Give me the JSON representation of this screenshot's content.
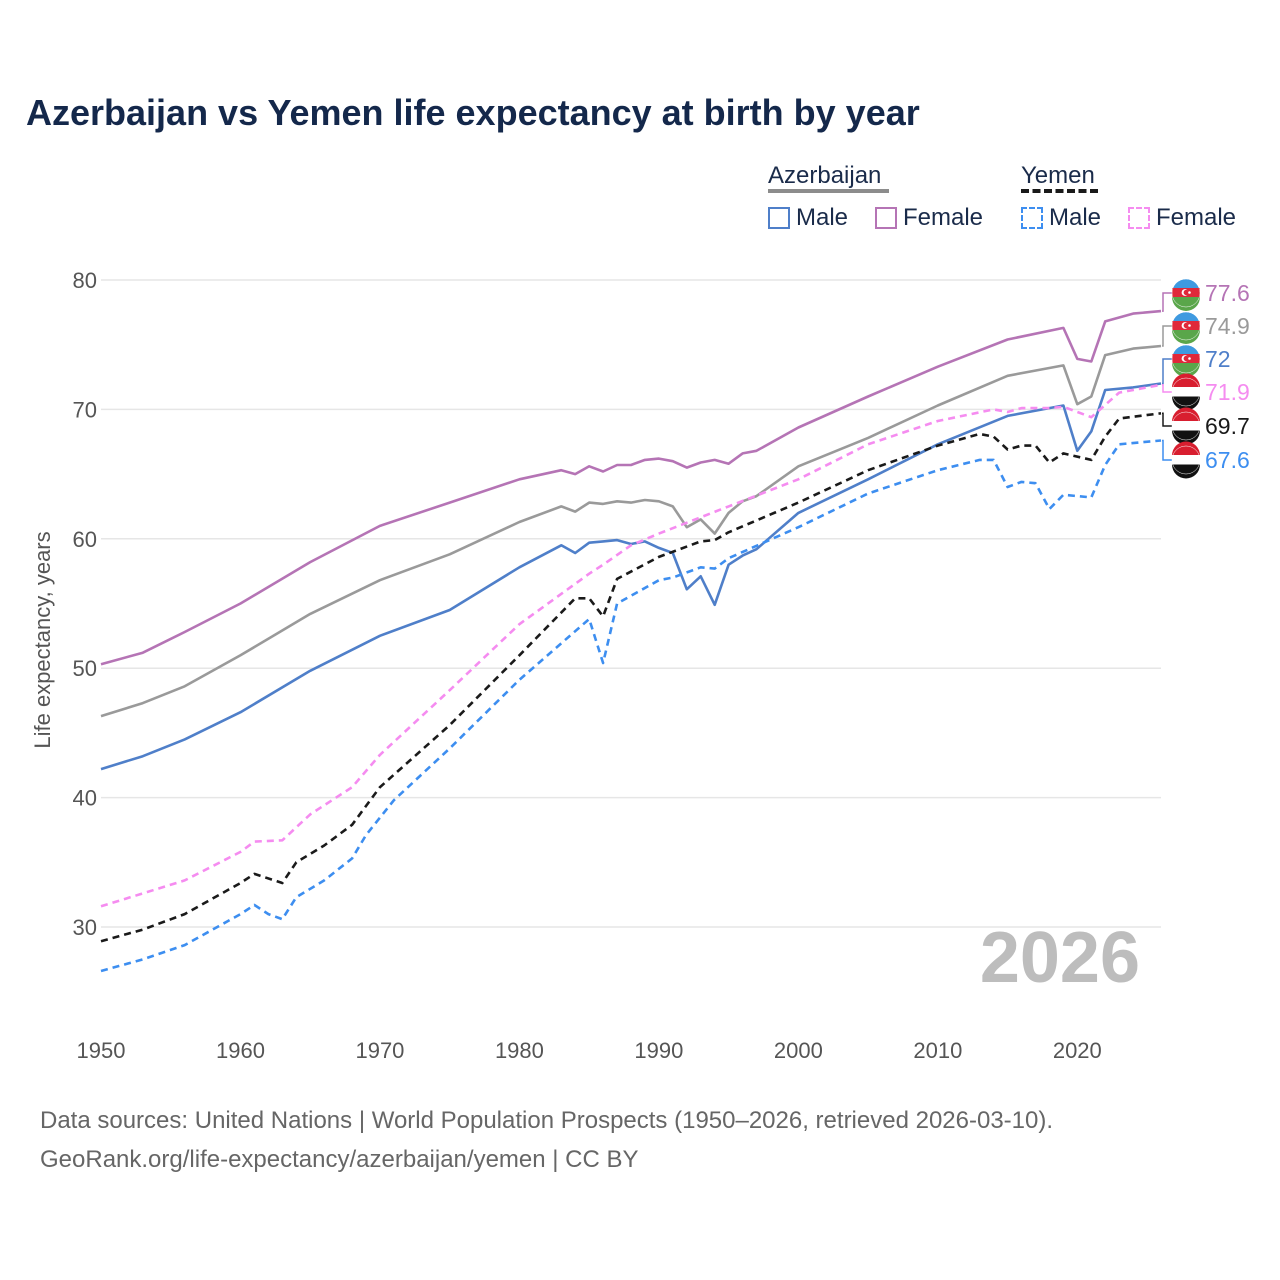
{
  "title": "Azerbaijan vs Yemen life expectancy at birth by year",
  "legend": {
    "groups": [
      {
        "country": "Azerbaijan",
        "line_color": "#8c8c8c",
        "line_style": "solid",
        "items": [
          {
            "label": "Male",
            "color": "#4f7fc9"
          },
          {
            "label": "Female",
            "color": "#b574b5"
          }
        ]
      },
      {
        "country": "Yemen",
        "line_color": "#1a1a1a",
        "line_style": "dashed",
        "items": [
          {
            "label": "Male",
            "color": "#3d8ef0"
          },
          {
            "label": "Female",
            "color": "#f58cf0"
          }
        ]
      }
    ]
  },
  "footer": {
    "line1": "Data sources: United Nations | World Population Prospects (1950–2026, retrieved 2026-03-10).",
    "line2": "GeoRank.org/life-expectancy/azerbaijan/yemen | CC BY"
  },
  "chart_data": {
    "type": "line",
    "title": "Azerbaijan vs Yemen life expectancy at birth by year",
    "xlabel": "",
    "ylabel": "Life expectancy, years",
    "xlim": [
      1950,
      2026
    ],
    "ylim": [
      22,
      82
    ],
    "x_ticks": [
      1950,
      1960,
      1970,
      1980,
      1990,
      2000,
      2010,
      2020
    ],
    "y_ticks": [
      30,
      40,
      50,
      60,
      70,
      80
    ],
    "year_label": "2026",
    "series": [
      {
        "name": "Azerbaijan Female",
        "color": "#b574b5",
        "dash": "solid",
        "end_label": "77.6",
        "flag": "azerbaijan",
        "points": [
          [
            1950,
            50.3
          ],
          [
            1953,
            51.2
          ],
          [
            1956,
            52.8
          ],
          [
            1960,
            55.0
          ],
          [
            1965,
            58.2
          ],
          [
            1970,
            61.0
          ],
          [
            1975,
            62.8
          ],
          [
            1980,
            64.6
          ],
          [
            1983,
            65.3
          ],
          [
            1984,
            65.0
          ],
          [
            1985,
            65.6
          ],
          [
            1986,
            65.2
          ],
          [
            1987,
            65.7
          ],
          [
            1988,
            65.7
          ],
          [
            1989,
            66.1
          ],
          [
            1990,
            66.2
          ],
          [
            1991,
            66.0
          ],
          [
            1992,
            65.5
          ],
          [
            1993,
            65.9
          ],
          [
            1994,
            66.1
          ],
          [
            1995,
            65.8
          ],
          [
            1996,
            66.6
          ],
          [
            1997,
            66.8
          ],
          [
            2000,
            68.6
          ],
          [
            2005,
            71.0
          ],
          [
            2010,
            73.3
          ],
          [
            2015,
            75.4
          ],
          [
            2019,
            76.3
          ],
          [
            2020,
            73.9
          ],
          [
            2021,
            73.7
          ],
          [
            2022,
            76.8
          ],
          [
            2024,
            77.4
          ],
          [
            2026,
            77.6
          ]
        ]
      },
      {
        "name": "Azerbaijan Both",
        "color": "#9a9a9a",
        "dash": "solid",
        "end_label": "74.9",
        "flag": "azerbaijan",
        "points": [
          [
            1950,
            46.3
          ],
          [
            1953,
            47.3
          ],
          [
            1956,
            48.6
          ],
          [
            1960,
            51.0
          ],
          [
            1965,
            54.2
          ],
          [
            1970,
            56.8
          ],
          [
            1975,
            58.8
          ],
          [
            1980,
            61.3
          ],
          [
            1983,
            62.5
          ],
          [
            1984,
            62.1
          ],
          [
            1985,
            62.8
          ],
          [
            1986,
            62.7
          ],
          [
            1987,
            62.9
          ],
          [
            1988,
            62.8
          ],
          [
            1989,
            63.0
          ],
          [
            1990,
            62.9
          ],
          [
            1991,
            62.5
          ],
          [
            1992,
            60.9
          ],
          [
            1993,
            61.5
          ],
          [
            1994,
            60.4
          ],
          [
            1995,
            62.0
          ],
          [
            1996,
            62.9
          ],
          [
            1997,
            63.3
          ],
          [
            2000,
            65.6
          ],
          [
            2005,
            67.8
          ],
          [
            2010,
            70.3
          ],
          [
            2015,
            72.6
          ],
          [
            2019,
            73.4
          ],
          [
            2020,
            70.4
          ],
          [
            2021,
            71.0
          ],
          [
            2022,
            74.2
          ],
          [
            2024,
            74.7
          ],
          [
            2026,
            74.9
          ]
        ]
      },
      {
        "name": "Azerbaijan Male",
        "color": "#4f7fc9",
        "dash": "solid",
        "end_label": "72",
        "flag": "azerbaijan",
        "points": [
          [
            1950,
            42.2
          ],
          [
            1953,
            43.2
          ],
          [
            1956,
            44.5
          ],
          [
            1960,
            46.6
          ],
          [
            1965,
            49.8
          ],
          [
            1970,
            52.5
          ],
          [
            1975,
            54.5
          ],
          [
            1980,
            57.8
          ],
          [
            1983,
            59.5
          ],
          [
            1984,
            58.9
          ],
          [
            1985,
            59.7
          ],
          [
            1986,
            59.8
          ],
          [
            1987,
            59.9
          ],
          [
            1988,
            59.6
          ],
          [
            1989,
            59.8
          ],
          [
            1990,
            59.3
          ],
          [
            1991,
            58.9
          ],
          [
            1992,
            56.1
          ],
          [
            1993,
            57.1
          ],
          [
            1994,
            54.9
          ],
          [
            1995,
            58.0
          ],
          [
            1996,
            58.7
          ],
          [
            1997,
            59.2
          ],
          [
            2000,
            62.0
          ],
          [
            2005,
            64.6
          ],
          [
            2010,
            67.3
          ],
          [
            2015,
            69.5
          ],
          [
            2019,
            70.3
          ],
          [
            2020,
            66.8
          ],
          [
            2021,
            68.3
          ],
          [
            2022,
            71.5
          ],
          [
            2024,
            71.7
          ],
          [
            2026,
            72.0
          ]
        ]
      },
      {
        "name": "Yemen Female",
        "color": "#f58cf0",
        "dash": "dashed",
        "end_label": "71.9",
        "flag": "yemen",
        "points": [
          [
            1950,
            31.6
          ],
          [
            1953,
            32.6
          ],
          [
            1956,
            33.6
          ],
          [
            1960,
            35.8
          ],
          [
            1961,
            36.6
          ],
          [
            1963,
            36.7
          ],
          [
            1965,
            38.7
          ],
          [
            1968,
            40.8
          ],
          [
            1970,
            43.3
          ],
          [
            1975,
            48.3
          ],
          [
            1980,
            53.4
          ],
          [
            1985,
            57.3
          ],
          [
            1986,
            58.0
          ],
          [
            1988,
            59.5
          ],
          [
            1990,
            60.4
          ],
          [
            1995,
            62.5
          ],
          [
            2000,
            64.6
          ],
          [
            2005,
            67.3
          ],
          [
            2010,
            69.1
          ],
          [
            2014,
            70.0
          ],
          [
            2015,
            69.8
          ],
          [
            2016,
            70.1
          ],
          [
            2018,
            70.1
          ],
          [
            2019,
            70.2
          ],
          [
            2021,
            69.4
          ],
          [
            2023,
            71.3
          ],
          [
            2026,
            71.9
          ]
        ]
      },
      {
        "name": "Yemen Both",
        "color": "#1a1a1a",
        "dash": "dashed",
        "end_label": "69.7",
        "flag": "yemen",
        "points": [
          [
            1950,
            28.9
          ],
          [
            1953,
            29.8
          ],
          [
            1956,
            31.0
          ],
          [
            1960,
            33.4
          ],
          [
            1961,
            34.1
          ],
          [
            1963,
            33.4
          ],
          [
            1964,
            35.0
          ],
          [
            1966,
            36.3
          ],
          [
            1968,
            37.9
          ],
          [
            1970,
            40.8
          ],
          [
            1975,
            45.6
          ],
          [
            1980,
            51.0
          ],
          [
            1984,
            55.4
          ],
          [
            1985,
            55.4
          ],
          [
            1986,
            54.0
          ],
          [
            1987,
            56.9
          ],
          [
            1990,
            58.6
          ],
          [
            1993,
            59.8
          ],
          [
            1994,
            59.9
          ],
          [
            1995,
            60.5
          ],
          [
            2000,
            62.8
          ],
          [
            2005,
            65.3
          ],
          [
            2010,
            67.2
          ],
          [
            2013,
            68.1
          ],
          [
            2014,
            67.9
          ],
          [
            2015,
            66.9
          ],
          [
            2016,
            67.2
          ],
          [
            2017,
            67.2
          ],
          [
            2018,
            65.9
          ],
          [
            2019,
            66.6
          ],
          [
            2021,
            66.1
          ],
          [
            2022,
            67.9
          ],
          [
            2023,
            69.3
          ],
          [
            2026,
            69.7
          ]
        ]
      },
      {
        "name": "Yemen Male",
        "color": "#3d8ef0",
        "dash": "dashed",
        "end_label": "67.6",
        "flag": "yemen",
        "points": [
          [
            1950,
            26.6
          ],
          [
            1953,
            27.5
          ],
          [
            1956,
            28.6
          ],
          [
            1960,
            31.0
          ],
          [
            1961,
            31.7
          ],
          [
            1962,
            31.0
          ],
          [
            1963,
            30.6
          ],
          [
            1964,
            32.3
          ],
          [
            1966,
            33.6
          ],
          [
            1968,
            35.3
          ],
          [
            1969,
            37.1
          ],
          [
            1971,
            39.8
          ],
          [
            1975,
            43.8
          ],
          [
            1980,
            49.1
          ],
          [
            1985,
            53.8
          ],
          [
            1986,
            50.4
          ],
          [
            1987,
            55.0
          ],
          [
            1990,
            56.8
          ],
          [
            1991,
            57.0
          ],
          [
            1993,
            57.8
          ],
          [
            1994,
            57.7
          ],
          [
            1995,
            58.5
          ],
          [
            2000,
            60.9
          ],
          [
            2005,
            63.5
          ],
          [
            2010,
            65.3
          ],
          [
            2013,
            66.1
          ],
          [
            2014,
            66.1
          ],
          [
            2015,
            64.0
          ],
          [
            2016,
            64.4
          ],
          [
            2017,
            64.3
          ],
          [
            2018,
            62.3
          ],
          [
            2019,
            63.4
          ],
          [
            2020,
            63.3
          ],
          [
            2021,
            63.2
          ],
          [
            2022,
            65.7
          ],
          [
            2023,
            67.3
          ],
          [
            2026,
            67.6
          ]
        ]
      }
    ]
  }
}
